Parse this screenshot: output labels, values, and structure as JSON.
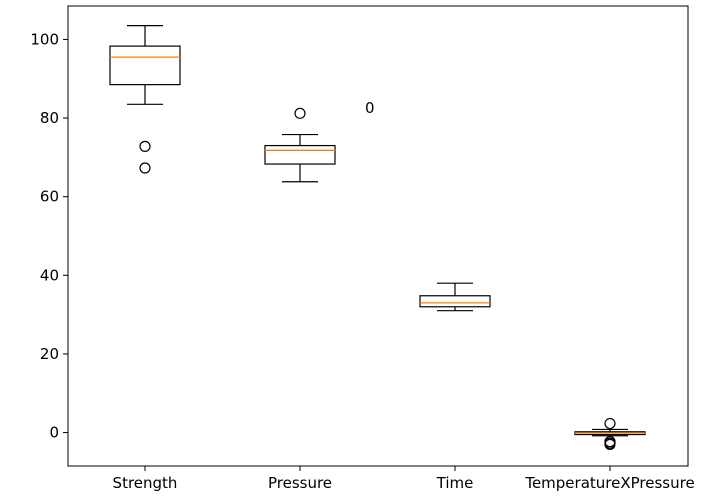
{
  "chart_data": {
    "type": "box",
    "categories": [
      "Strength",
      "Pressure",
      "Time",
      "TemperatureXPressure"
    ],
    "boxes": [
      {
        "whisker_low": 83.5,
        "q1": 88.5,
        "median": 95.5,
        "q3": 98.3,
        "whisker_high": 103.5,
        "outliers": [
          72.8,
          67.3
        ]
      },
      {
        "whisker_low": 63.8,
        "q1": 68.3,
        "median": 71.8,
        "q3": 73.0,
        "whisker_high": 75.8,
        "outliers": [
          81.2
        ]
      },
      {
        "whisker_low": 31.0,
        "q1": 32.0,
        "median": 33.0,
        "q3": 34.8,
        "whisker_high": 38.0,
        "outliers": []
      },
      {
        "whisker_low": -0.8,
        "q1": -0.5,
        "median": -0.1,
        "q3": 0.2,
        "whisker_high": 0.8,
        "outliers": [
          2.3,
          -2.3,
          -2.7,
          -3.0
        ]
      }
    ],
    "annotations": [
      {
        "text": "0",
        "x": 1.45,
        "y": 82.5
      }
    ],
    "y_ticks": [
      0,
      20,
      40,
      60,
      80,
      100
    ],
    "ylim": [
      -8.5,
      108.5
    ],
    "grid": false,
    "colors": {
      "box": "#000000",
      "median": "#ff7f0e",
      "background": "#ffffff"
    }
  }
}
